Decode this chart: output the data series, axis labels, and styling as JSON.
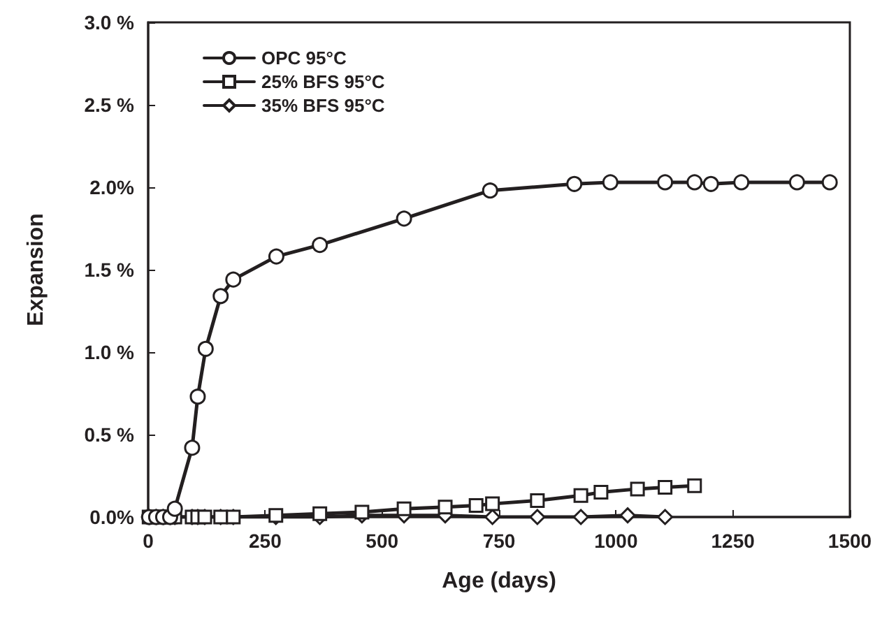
{
  "chart_data": {
    "type": "line",
    "xlabel": "Age (days)",
    "ylabel": "Expansion",
    "xlim": [
      0,
      1500
    ],
    "xticks": [
      0,
      250,
      500,
      750,
      1000,
      1250,
      1500
    ],
    "ylim": [
      0,
      3
    ],
    "yticks": [
      {
        "value": 0,
        "label": "0.0%"
      },
      {
        "value": 0.5,
        "label": "0.5 %"
      },
      {
        "value": 1,
        "label": "1.0 %"
      },
      {
        "value": 1.5,
        "label": "1.5 %"
      },
      {
        "value": 2,
        "label": "2.0%"
      },
      {
        "value": 2.5,
        "label": "2.5 %"
      },
      {
        "value": 3,
        "label": "3.0 %"
      }
    ],
    "grid": false,
    "legend": "top left",
    "line_style": "solid",
    "series": [
      {
        "name": "OPC 95°C",
        "color": "#231f20",
        "marker": "circle",
        "x": [
          2,
          17,
          32,
          47,
          57,
          94,
          106,
          123,
          155,
          182,
          274,
          367,
          547,
          731,
          911,
          988,
          1105,
          1168,
          1203,
          1268,
          1387,
          1457
        ],
        "values": [
          0,
          0,
          0,
          0,
          0.05,
          0.42,
          0.73,
          1.02,
          1.34,
          1.44,
          1.58,
          1.65,
          1.81,
          1.98,
          2.02,
          2.03,
          2.03,
          2.03,
          2.02,
          2.03,
          2.03,
          2.03
        ]
      },
      {
        "name": "25% BFS 95°C",
        "color": "#231f20",
        "marker": "square",
        "x": [
          2,
          17,
          32,
          47,
          57,
          94,
          106,
          121,
          155,
          182,
          273,
          367,
          457,
          547,
          635,
          701,
          736,
          832,
          925,
          968,
          1046,
          1105,
          1168
        ],
        "values": [
          0,
          0,
          0,
          0,
          0,
          0,
          0,
          0,
          0,
          0,
          0.01,
          0.02,
          0.03,
          0.05,
          0.06,
          0.07,
          0.08,
          0.1,
          0.13,
          0.15,
          0.17,
          0.18,
          0.19
        ]
      },
      {
        "name": "35% BFS 95°C",
        "color": "#231f20",
        "marker": "diamond",
        "x": [
          2,
          17,
          32,
          47,
          57,
          94,
          106,
          121,
          155,
          182,
          273,
          367,
          457,
          547,
          635,
          736,
          832,
          925,
          1025,
          1105
        ],
        "values": [
          0,
          0,
          0,
          0,
          0,
          0,
          0,
          0,
          0,
          0,
          0,
          0,
          0.01,
          0.01,
          0.01,
          0,
          0,
          0,
          0.01,
          0
        ]
      }
    ]
  }
}
